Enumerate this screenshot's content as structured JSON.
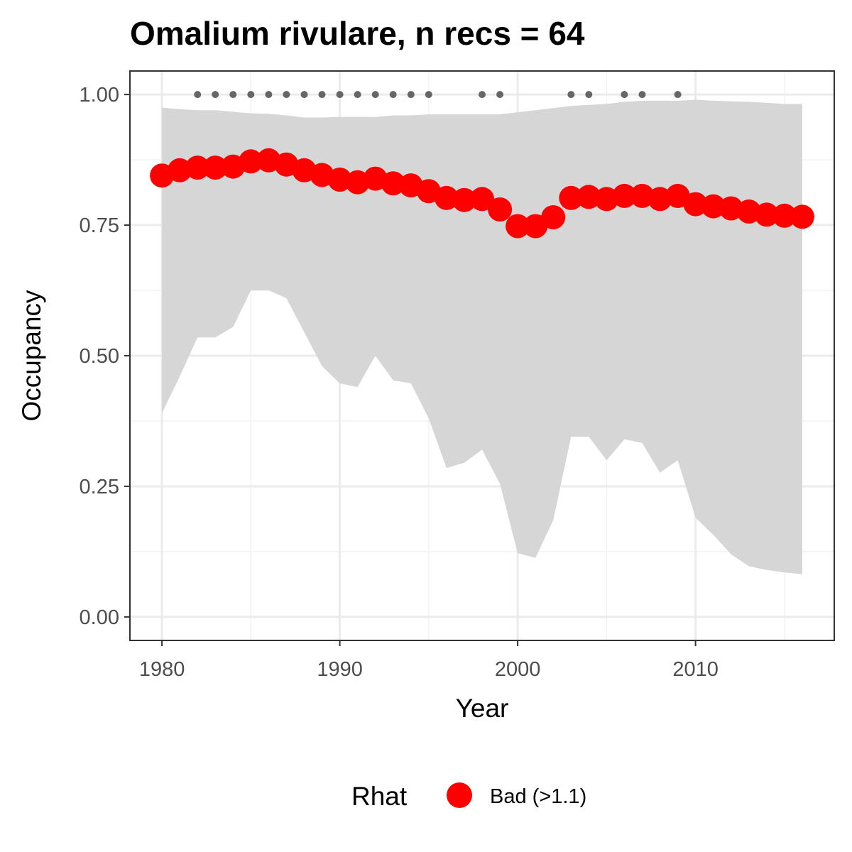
{
  "chart_data": {
    "type": "line",
    "title": "Omalium rivulare, n recs = 64",
    "xlabel": "Year",
    "ylabel": "Occupancy",
    "xlim": [
      1978.2,
      2017.8
    ],
    "ylim": [
      -0.045,
      1.045
    ],
    "x_ticks": [
      1980,
      1990,
      2000,
      2010
    ],
    "x_tick_labels": [
      "1980",
      "1990",
      "2000",
      "2010"
    ],
    "y_ticks": [
      0,
      0.25,
      0.5,
      0.75,
      1.0
    ],
    "y_tick_labels": [
      "0.00",
      "0.25",
      "0.50",
      "0.75",
      "1.00"
    ],
    "grid": true,
    "colors": {
      "points": "#ff0000",
      "ribbon": "#d6d6d6",
      "record_dots": "#666666",
      "grid_major": "#ebebeb",
      "panel_border": "#333333"
    },
    "series": [
      {
        "x": [
          1980,
          1981,
          1982,
          1983,
          1984,
          1985,
          1986,
          1987,
          1988,
          1989,
          1990,
          1991,
          1992,
          1993,
          1994,
          1995,
          1996,
          1997,
          1998,
          1999,
          2000,
          2001,
          2002,
          2003,
          2004,
          2005,
          2006,
          2007,
          2008,
          2009,
          2010,
          2011,
          2012,
          2013,
          2014,
          2015,
          2016
        ],
        "y": [
          0.845,
          0.855,
          0.86,
          0.86,
          0.862,
          0.872,
          0.874,
          0.866,
          0.855,
          0.846,
          0.837,
          0.832,
          0.839,
          0.83,
          0.826,
          0.815,
          0.802,
          0.798,
          0.8,
          0.78,
          0.748,
          0.748,
          0.765,
          0.802,
          0.804,
          0.8,
          0.806,
          0.806,
          0.8,
          0.806,
          0.79,
          0.786,
          0.782,
          0.776,
          0.77,
          0.768,
          0.766
        ],
        "lower": [
          0.39,
          0.46,
          0.535,
          0.535,
          0.555,
          0.625,
          0.625,
          0.61,
          0.545,
          0.48,
          0.447,
          0.44,
          0.5,
          0.453,
          0.447,
          0.38,
          0.285,
          0.295,
          0.32,
          0.255,
          0.122,
          0.113,
          0.185,
          0.345,
          0.345,
          0.3,
          0.34,
          0.333,
          0.276,
          0.3,
          0.19,
          0.157,
          0.12,
          0.097,
          0.09,
          0.085,
          0.082
        ],
        "upper": [
          0.975,
          0.972,
          0.97,
          0.97,
          0.967,
          0.964,
          0.963,
          0.96,
          0.956,
          0.956,
          0.957,
          0.957,
          0.957,
          0.96,
          0.96,
          0.962,
          0.962,
          0.962,
          0.962,
          0.962,
          0.966,
          0.97,
          0.974,
          0.978,
          0.98,
          0.982,
          0.986,
          0.988,
          0.988,
          0.988,
          0.99,
          0.988,
          0.987,
          0.986,
          0.984,
          0.982,
          0.982
        ]
      }
    ],
    "record_years": [
      1982,
      1983,
      1984,
      1985,
      1986,
      1987,
      1988,
      1989,
      1990,
      1991,
      1992,
      1993,
      1994,
      1995,
      1998,
      1999,
      2003,
      2004,
      2006,
      2007,
      2009
    ],
    "record_y": 1.0,
    "legend": {
      "title": "Rhat",
      "items": [
        {
          "label": "Bad (>1.1)",
          "color": "#ff0000"
        }
      ],
      "position": "bottom"
    }
  }
}
